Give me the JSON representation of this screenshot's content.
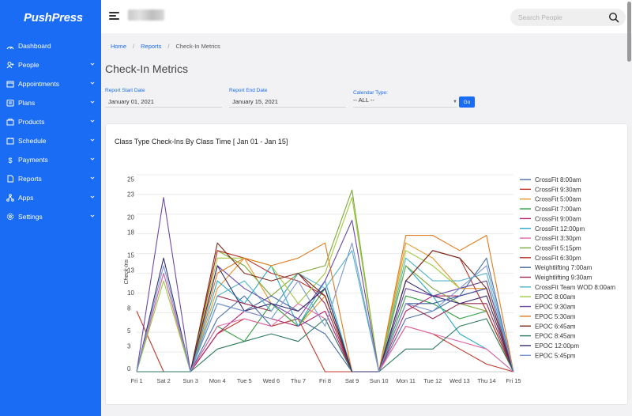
{
  "sidebar": {
    "logo": "PushPress",
    "items": [
      {
        "label": "Dashboard",
        "icon": "dashboard-icon",
        "chevron": false
      },
      {
        "label": "People",
        "icon": "people-icon",
        "chevron": true
      },
      {
        "label": "Appointments",
        "icon": "appointments-icon",
        "chevron": true
      },
      {
        "label": "Plans",
        "icon": "plans-icon",
        "chevron": true
      },
      {
        "label": "Products",
        "icon": "products-icon",
        "chevron": true
      },
      {
        "label": "Schedule",
        "icon": "schedule-icon",
        "chevron": true
      },
      {
        "label": "Payments",
        "icon": "payments-icon",
        "chevron": true
      },
      {
        "label": "Reports",
        "icon": "reports-icon",
        "chevron": true
      },
      {
        "label": "Apps",
        "icon": "apps-icon",
        "chevron": true
      },
      {
        "label": "Settings",
        "icon": "settings-icon",
        "chevron": true
      }
    ]
  },
  "topbar": {
    "search_placeholder": "Search People"
  },
  "breadcrumb": {
    "home": "Home",
    "reports": "Reports",
    "current": "Check-In Metrics",
    "separator": "/"
  },
  "page": {
    "title": "Check-In Metrics"
  },
  "filters": {
    "start_label": "Report Start Date",
    "start_value": "January 01, 2021",
    "end_label": "Report End Date",
    "end_value": "January 15, 2021",
    "calendar_label": "Calendar Type:",
    "calendar_value": "-- ALL --",
    "go_label": "Go"
  },
  "colors": {
    "accent": "#1a6cf5",
    "sidebar": "#1a6cf5"
  },
  "chart_data": {
    "type": "line",
    "title": "Class Type Check-Ins By Class Time [ Jan 01 - Jan 15]",
    "xlabel": "",
    "ylabel": "Check-Ins",
    "ylim": [
      0,
      26
    ],
    "yticks": [
      {
        "label": "25",
        "value": 25
      },
      {
        "label": "23",
        "value": 23
      },
      {
        "label": "20",
        "value": 20
      },
      {
        "label": "18",
        "value": 18
      },
      {
        "label": "15",
        "value": 15
      },
      {
        "label": "13",
        "value": 13
      },
      {
        "label": "10",
        "value": 10
      },
      {
        "label": "8",
        "value": 8
      },
      {
        "label": "5",
        "value": 5
      },
      {
        "label": "3",
        "value": 3
      },
      {
        "label": "0",
        "value": 0
      }
    ],
    "grid": true,
    "legend": "right",
    "categories": [
      "Fri 1",
      "Sat 2",
      "Sun 3",
      "Mon 4",
      "Tue 5",
      "Wed 6",
      "Thu 7",
      "Fri 8",
      "Sat 9",
      "Sun 10",
      "Mon 11",
      "Tue 12",
      "Wed 13",
      "Thu 14",
      "Fri 15"
    ],
    "series": [
      {
        "name": "CrossFit 8:00am",
        "color": "#4a6fa5",
        "values": [
          0,
          0,
          0,
          7,
          10,
          6,
          7,
          5,
          0,
          0,
          7,
          8,
          10,
          15,
          0
        ]
      },
      {
        "name": "CrossFit 9:30am",
        "color": "#c0392b",
        "values": [
          8,
          0,
          0,
          5,
          7,
          6,
          7,
          0,
          0,
          0,
          6,
          5,
          3,
          1,
          0
        ]
      },
      {
        "name": "CrossFit 5:00am",
        "color": "#e8962b",
        "values": [
          0,
          0,
          0,
          11,
          15,
          9,
          6,
          10,
          0,
          0,
          17,
          15,
          11,
          11,
          0
        ]
      },
      {
        "name": "CrossFit 7:00am",
        "color": "#2e9e3e",
        "values": [
          0,
          0,
          0,
          6,
          4,
          9,
          6,
          11,
          0,
          0,
          10,
          9,
          7,
          8,
          0
        ]
      },
      {
        "name": "CrossFit 9:00am",
        "color": "#b0226f",
        "values": [
          0,
          0,
          0,
          5,
          8,
          7,
          6,
          8,
          0,
          0,
          8,
          10,
          10,
          11,
          0
        ]
      },
      {
        "name": "CrossFit 12:00pm",
        "color": "#29a9c9",
        "values": [
          0,
          13,
          0,
          12,
          9,
          14,
          6,
          12,
          0,
          0,
          14,
          10,
          5,
          3,
          0
        ]
      },
      {
        "name": "CrossFit 3:30pm",
        "color": "#e06aa8",
        "values": [
          0,
          13,
          0,
          6,
          7,
          6,
          9,
          7,
          0,
          0,
          6,
          5,
          4,
          3,
          0
        ]
      },
      {
        "name": "CrossFit 5:15pm",
        "color": "#7ba83a",
        "values": [
          0,
          0,
          0,
          16,
          14,
          10,
          13,
          14,
          24,
          0,
          14,
          11,
          9,
          8,
          0
        ]
      },
      {
        "name": "CrossFit 6:30pm",
        "color": "#b8322a",
        "values": [
          0,
          0,
          0,
          16,
          15,
          13,
          12,
          10,
          0,
          0,
          12,
          16,
          15,
          8,
          0
        ]
      },
      {
        "name": "Weightlifting 7:00am",
        "color": "#3e5f9e",
        "values": [
          0,
          0,
          0,
          9,
          8,
          10,
          8,
          11,
          0,
          0,
          9,
          9,
          10,
          11,
          0
        ]
      },
      {
        "name": "Weightlifting 9:30am",
        "color": "#9b2a4e",
        "values": [
          0,
          0,
          0,
          10,
          9,
          8,
          13,
          9,
          0,
          0,
          9,
          7,
          9,
          9,
          0
        ]
      },
      {
        "name": "CrossFit Team WOD 8:00am",
        "color": "#4fb3c9",
        "values": [
          0,
          0,
          0,
          10,
          12,
          8,
          13,
          11,
          16,
          0,
          15,
          12,
          12,
          13,
          0
        ]
      },
      {
        "name": "EPOC 8:00am",
        "color": "#9fc93c",
        "values": [
          0,
          12,
          0,
          15,
          15,
          14,
          9,
          13,
          23,
          0,
          16,
          14,
          11,
          12,
          0
        ]
      },
      {
        "name": "EPOC 9:30am",
        "color": "#6b4aa8",
        "values": [
          0,
          23,
          0,
          14,
          11,
          9,
          7,
          12,
          20,
          0,
          11,
          10,
          11,
          12,
          0
        ]
      },
      {
        "name": "EPOC 5:30am",
        "color": "#e07b1f",
        "values": [
          0,
          0,
          0,
          13,
          15,
          14,
          15,
          17,
          0,
          0,
          18,
          18,
          16,
          18,
          0
        ]
      },
      {
        "name": "EPOC 6:45am",
        "color": "#7a2c1a",
        "values": [
          0,
          0,
          0,
          17,
          13,
          12,
          13,
          10,
          0,
          0,
          12,
          16,
          15,
          11,
          0
        ]
      },
      {
        "name": "EPOC 8:45am",
        "color": "#2b7a5a",
        "values": [
          0,
          0,
          0,
          3,
          4,
          5,
          4,
          7,
          0,
          0,
          3,
          3,
          6,
          7,
          0
        ]
      },
      {
        "name": "EPOC 12:00pm",
        "color": "#3a2d6e",
        "values": [
          0,
          15,
          0,
          14,
          8,
          9,
          8,
          11,
          0,
          0,
          12,
          10,
          9,
          10,
          0
        ]
      },
      {
        "name": "EPOC 5:45pm",
        "color": "#7a9ad0",
        "values": [
          0,
          14,
          0,
          9,
          8,
          7,
          12,
          6,
          17,
          0,
          9,
          8,
          11,
          14,
          0
        ]
      }
    ]
  }
}
